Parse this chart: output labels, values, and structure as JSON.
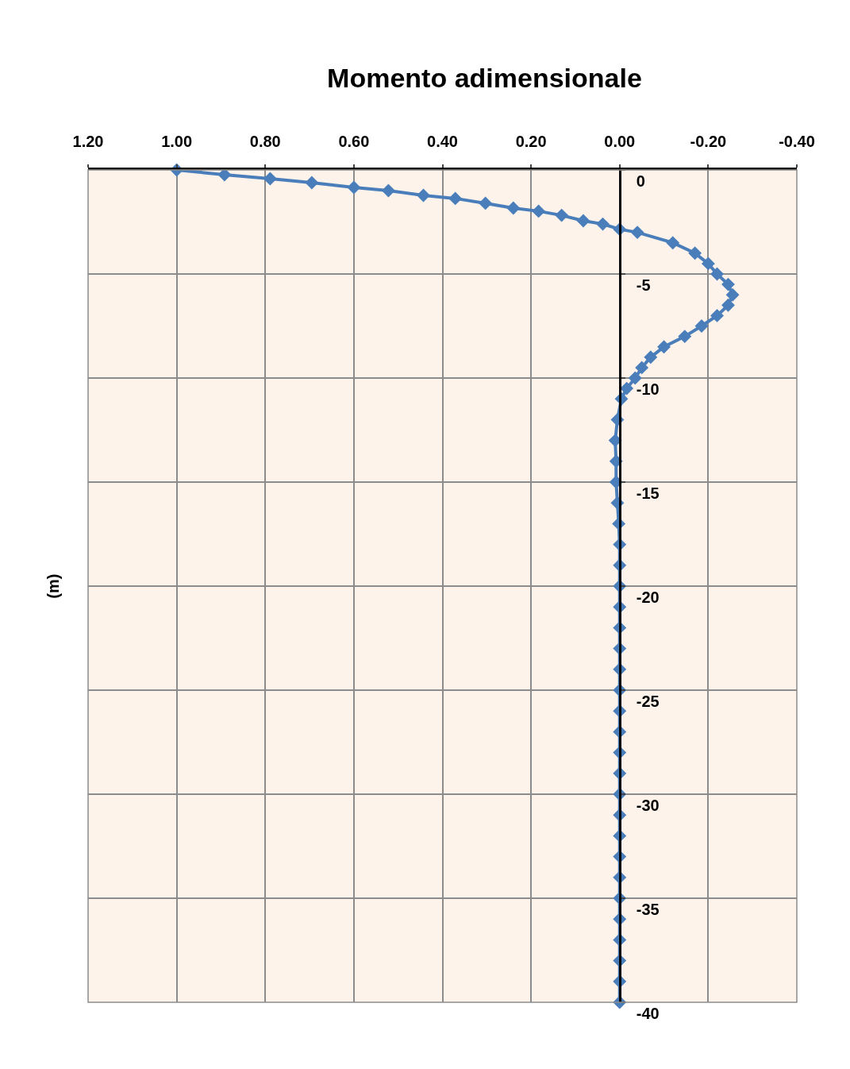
{
  "chart_data": {
    "type": "line",
    "title": "Momento adimensionale",
    "ylabel": "(m)",
    "x": [
      1.0,
      0.892,
      0.789,
      0.695,
      0.6,
      0.522,
      0.443,
      0.371,
      0.303,
      0.24,
      0.183,
      0.131,
      0.082,
      0.038,
      0.0,
      -0.04,
      -0.12,
      -0.17,
      -0.2,
      -0.22,
      -0.245,
      -0.255,
      -0.245,
      -0.22,
      -0.185,
      -0.147,
      -0.1,
      -0.07,
      -0.05,
      -0.035,
      -0.016,
      -0.004,
      0.005,
      0.01,
      0.008,
      0.008,
      0.005,
      0.002,
      0.0,
      0.0,
      0.0,
      0.0,
      0.0,
      0.0,
      0.0,
      0.0,
      0.0,
      0.0,
      0.0,
      0.0,
      0.0,
      0.0,
      0.0,
      0.0,
      0.0,
      0.0,
      0.0,
      0.0,
      0.0,
      0.0,
      0.0
    ],
    "series": [
      {
        "color": "#4a7ebb",
        "values": [
          0,
          -0.23,
          -0.42,
          -0.61,
          -0.84,
          -0.99,
          -1.22,
          -1.37,
          -1.6,
          -1.83,
          -1.98,
          -2.18,
          -2.44,
          -2.6,
          -2.85,
          -3,
          -3.5,
          -4,
          -4.5,
          -5,
          -5.5,
          -6,
          -6.5,
          -7,
          -7.5,
          -8,
          -8.5,
          -9,
          -9.5,
          -10,
          -10.5,
          -11,
          -12,
          -13,
          -14,
          -15,
          -16,
          -17,
          -18,
          -19,
          -20,
          -21,
          -22,
          -23,
          -24,
          -25,
          -26,
          -27,
          -28,
          -29,
          -30,
          -31,
          -32,
          -33,
          -34,
          -35,
          -36,
          -37,
          -38,
          -39,
          -40
        ]
      }
    ],
    "xlim": [
      1.2,
      -0.4
    ],
    "xticks": [
      {
        "value": 1.2,
        "label": "1.20"
      },
      {
        "value": 1.0,
        "label": "1.00"
      },
      {
        "value": 0.8,
        "label": "0.80"
      },
      {
        "value": 0.6,
        "label": "0.60"
      },
      {
        "value": 0.4,
        "label": "0.40"
      },
      {
        "value": 0.2,
        "label": "0.20"
      },
      {
        "value": 0,
        "label": "0.00"
      },
      {
        "value": -0.2,
        "label": "-0.20"
      },
      {
        "value": -0.4,
        "label": "-0.40"
      }
    ],
    "ylim": [
      -40,
      0
    ],
    "yticks": [
      0,
      -5,
      -10,
      -15,
      -20,
      -25,
      -30,
      -35,
      -40
    ],
    "grid": true,
    "marker": "diamond",
    "line_style": "solid",
    "legend": false
  }
}
